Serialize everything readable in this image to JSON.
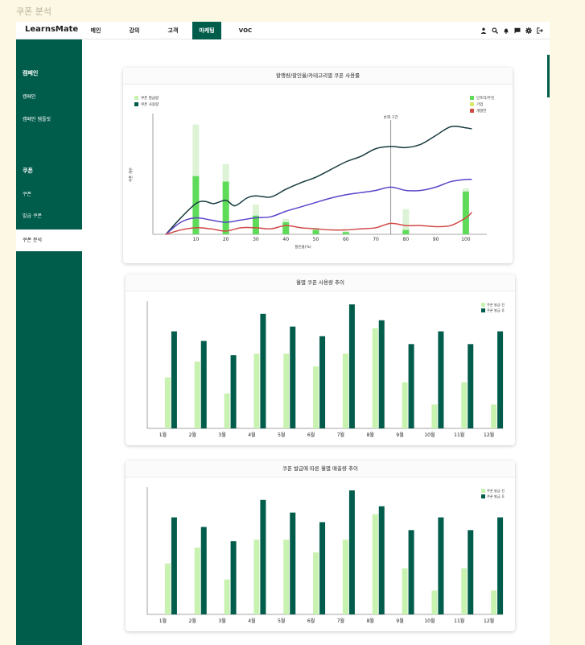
{
  "page": {
    "caption": "쿠폰 분석"
  },
  "header": {
    "logo": "LearnsMate",
    "nav": [
      {
        "label": "메인",
        "active": false
      },
      {
        "label": "강의",
        "active": false
      },
      {
        "label": "고객",
        "active": false
      },
      {
        "label": "마케팅",
        "active": true
      },
      {
        "label": "VOC",
        "active": false
      }
    ],
    "icons": [
      "user-icon",
      "search-icon",
      "bell-icon",
      "chat-icon",
      "gear-icon",
      "logout-icon"
    ]
  },
  "sidebar": {
    "sections": [
      {
        "title": "캠페인",
        "items": [
          "캠페인",
          "캠페인 템플릿"
        ]
      },
      {
        "title": "쿠폰",
        "items": [
          "쿠폰",
          "발급 쿠폰",
          "쿠폰 분석"
        ]
      }
    ],
    "active_item": "쿠폰 분석"
  },
  "colors": {
    "brand": "#005c4b",
    "light_green": "#c8f2b0",
    "mid_green": "#5fdb5a",
    "pale_green": "#dcf3d6",
    "navy_line": "#173b3f",
    "purple_line": "#5b44c9",
    "red_line": "#d14a47"
  },
  "chart_data": [
    {
      "type": "bar",
      "title": "할행량/할인율/카테고리별 쿠폰 사용률",
      "xlabel": "할인율(%)",
      "ylabel": "쿠폰 개수",
      "x_ticks": [
        10,
        20,
        30,
        40,
        50,
        60,
        70,
        80,
        90,
        100
      ],
      "annotation": {
        "label": "손해 구간",
        "x": 75
      },
      "legend_left": [
        "쿠폰 발급량",
        "쿠폰 사용량"
      ],
      "legend_right": [
        "인프라/주진",
        "기업",
        "개발언"
      ],
      "categories": [
        10,
        20,
        30,
        40,
        50,
        60,
        70,
        80,
        90,
        100
      ],
      "series": [
        {
          "name": "쿠폰 발급량",
          "values": [
            100,
            64,
            27,
            14,
            6,
            3,
            0,
            23,
            0,
            42
          ]
        },
        {
          "name": "쿠폰 사용량",
          "values": [
            53,
            48,
            17,
            11,
            4,
            2,
            0,
            4,
            0,
            39
          ]
        }
      ],
      "lines": [
        {
          "name": "인프라/주진",
          "x": [
            0,
            5,
            10,
            13,
            16,
            20,
            23,
            27,
            30,
            35,
            40,
            45,
            50,
            55,
            60,
            65,
            70,
            75,
            80,
            85,
            90,
            95,
            100,
            102
          ],
          "values": [
            0,
            15,
            28,
            30,
            28,
            31,
            26,
            33,
            35,
            34,
            41,
            47,
            52,
            59,
            66,
            71,
            78,
            80,
            79,
            82,
            90,
            98,
            97,
            96
          ]
        },
        {
          "name": "기업",
          "x": [
            0,
            5,
            10,
            15,
            20,
            25,
            30,
            35,
            40,
            45,
            50,
            55,
            60,
            65,
            70,
            75,
            80,
            85,
            90,
            95,
            100,
            102
          ],
          "values": [
            0,
            11,
            15,
            13,
            11,
            13,
            15,
            16,
            21,
            25,
            29,
            33,
            36,
            38,
            40,
            43,
            40,
            40,
            43,
            48,
            50,
            50
          ]
        },
        {
          "name": "개발언",
          "x": [
            0,
            5,
            10,
            15,
            20,
            25,
            30,
            35,
            40,
            45,
            50,
            55,
            60,
            65,
            70,
            75,
            80,
            85,
            90,
            95,
            100,
            102
          ],
          "values": [
            0,
            4,
            6,
            5,
            3,
            6,
            6,
            5,
            8,
            6,
            5,
            4,
            4,
            5,
            6,
            10,
            8,
            8,
            7,
            8,
            15,
            20
          ]
        }
      ],
      "ylim": [
        0,
        110
      ],
      "xlim": [
        -7,
        107
      ]
    },
    {
      "type": "bar",
      "title": "월별 쿠폰 사용량 추이",
      "categories": [
        "1월",
        "2월",
        "3월",
        "4월",
        "5월",
        "6월",
        "7월",
        "8월",
        "9월",
        "10월",
        "11월",
        "12월"
      ],
      "series": [
        {
          "name": "쿠폰 발급 전",
          "values": [
            32,
            42,
            22,
            47,
            47,
            39,
            47,
            63,
            29,
            15,
            29,
            15
          ]
        },
        {
          "name": "쿠폰 발급 후",
          "values": [
            61,
            55,
            46,
            72,
            64,
            58,
            78,
            68,
            53,
            61,
            53,
            61
          ]
        }
      ],
      "ylim": [
        0,
        80
      ]
    },
    {
      "type": "bar",
      "title": "쿠폰 발급에 따른 월별 매출량 추이",
      "categories": [
        "1월",
        "2월",
        "3월",
        "4월",
        "5월",
        "6월",
        "7월",
        "8월",
        "9월",
        "10월",
        "11월",
        "12월"
      ],
      "series": [
        {
          "name": "쿠폰 발급 전",
          "values": [
            32,
            42,
            22,
            47,
            47,
            39,
            47,
            63,
            29,
            15,
            29,
            15
          ]
        },
        {
          "name": "쿠폰 발급 후",
          "values": [
            61,
            55,
            46,
            72,
            64,
            58,
            78,
            68,
            53,
            61,
            53,
            61
          ]
        }
      ],
      "ylim": [
        0,
        80
      ]
    }
  ]
}
